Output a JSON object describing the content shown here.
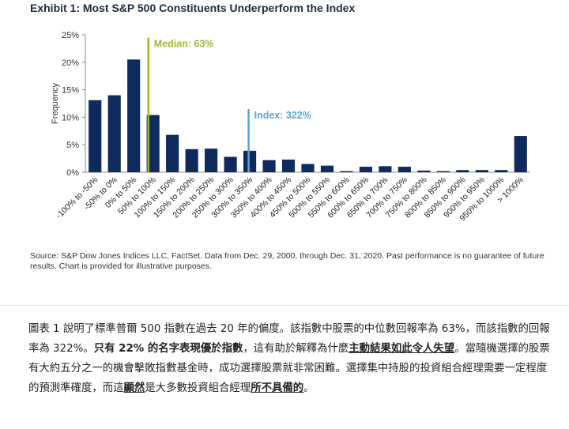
{
  "exhibit": {
    "title": "Exhibit 1: Most S&P 500 Constituents Underperform the Index",
    "source": "Source: S&P Dow Jones Indices LLC, FactSet. Data from Dec. 29, 2000, through Dec. 31, 2020. Past performance is no guarantee of future results. Chart is provided for illustrative purposes."
  },
  "chart_data": {
    "type": "bar",
    "title": "Exhibit 1: Most S&P 500 Constituents Underperform the Index",
    "xlabel": "",
    "ylabel": "Frequency",
    "ylim": [
      0,
      25
    ],
    "yticks": [
      "0%",
      "5%",
      "10%",
      "15%",
      "20%",
      "25%"
    ],
    "ytick_values": [
      0,
      5,
      10,
      15,
      20,
      25
    ],
    "categories": [
      "-100% to -50%",
      "-50% to 0%",
      "0% to 50%",
      "50% to 100%",
      "100% to 150%",
      "150% to 200%",
      "200% to 250%",
      "250% to 300%",
      "300% to 350%",
      "350% to 400%",
      "400% to 450%",
      "450% to 500%",
      "500% to 550%",
      "550% to 600%",
      "600% to 650%",
      "650% to 700%",
      "700% to 750%",
      "750% to 800%",
      "800% to 850%",
      "850% to 900%",
      "900% to 950%",
      "950% to 1000%",
      "> 1000%"
    ],
    "values": [
      13.1,
      14.0,
      20.5,
      10.4,
      6.8,
      4.2,
      4.3,
      2.8,
      3.9,
      2.2,
      2.3,
      1.5,
      1.2,
      0.2,
      1.0,
      1.1,
      1.0,
      0.3,
      0.2,
      0.4,
      0.4,
      0.4,
      6.6
    ],
    "bar_color": "#0f2a5c",
    "grid": false,
    "annotations": [
      {
        "label": "Median: 63%",
        "x_value": 63,
        "color": "#9cbb2e"
      },
      {
        "label": "Index: 322%",
        "x_value": 322,
        "color": "#5ea3d6"
      }
    ]
  },
  "paragraph": {
    "p1": "圖表 1 說明了標準普爾 500 指數在過去 20 年的偏度。該指數中股票的中位數回報率為 63%，而該指數的回報率為 322%。",
    "p2": "只有 22% 的名字表現優於指數",
    "p3": "，這有助於解釋為什麼",
    "p4": "主動結果如此令人失望",
    "p5": "。當隨機選擇的股票有大約五分之一的機會擊敗指數基金時，成功選擇股票就非常困難。選擇集中持股的投資組合經理需要一定程度的預測準確度，而這",
    "p6": "顯然",
    "p7": "是大多數投資組合經理",
    "p8": "所不具備的",
    "p9": "。"
  }
}
